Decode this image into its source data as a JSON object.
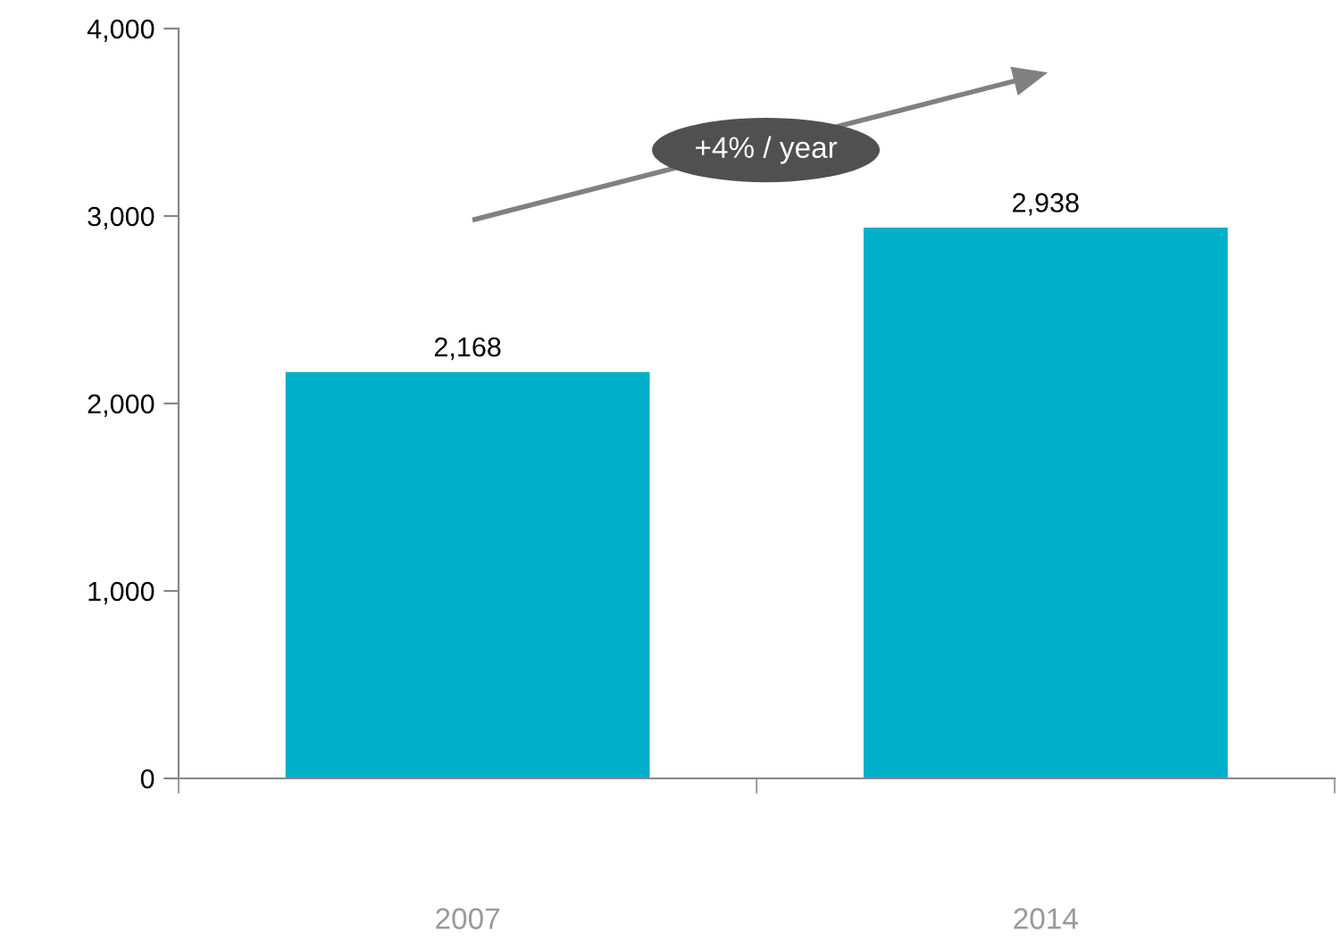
{
  "chart_data": {
    "type": "bar",
    "categories": [
      "2007",
      "2014"
    ],
    "values": [
      2168,
      2938
    ],
    "color": "#00afc9",
    "ylim": [
      0,
      4000
    ],
    "yticks": [
      {
        "value": 0,
        "label": "0"
      },
      {
        "value": 1000,
        "label": "1,000"
      },
      {
        "value": 2000,
        "label": "2,000"
      },
      {
        "value": 3000,
        "label": "3,000"
      },
      {
        "value": 4000,
        "label": "4,000"
      }
    ],
    "value_labels": [
      "2,168",
      "2,938"
    ],
    "grid": false,
    "annotations": [
      "+4% / year"
    ]
  }
}
